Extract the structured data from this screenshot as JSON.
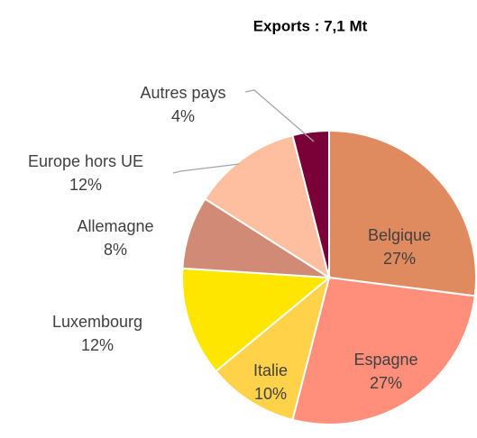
{
  "chart_data": {
    "type": "pie",
    "title": "Exports : 7,1 Mt",
    "categories": [
      "Belgique",
      "Espagne",
      "Italie",
      "Luxembourg",
      "Allemagne",
      "Europe hors UE",
      "Autres pays"
    ],
    "values": [
      27,
      27,
      10,
      12,
      8,
      12,
      4
    ],
    "value_labels": [
      "27%",
      "27%",
      "10%",
      "12%",
      "8%",
      "12%",
      "4%"
    ],
    "colors": [
      "#E08A5F",
      "#FF8F7A",
      "#FFD24A",
      "#FFE600",
      "#D08A75",
      "#FDBF9F",
      "#7A0038"
    ]
  }
}
